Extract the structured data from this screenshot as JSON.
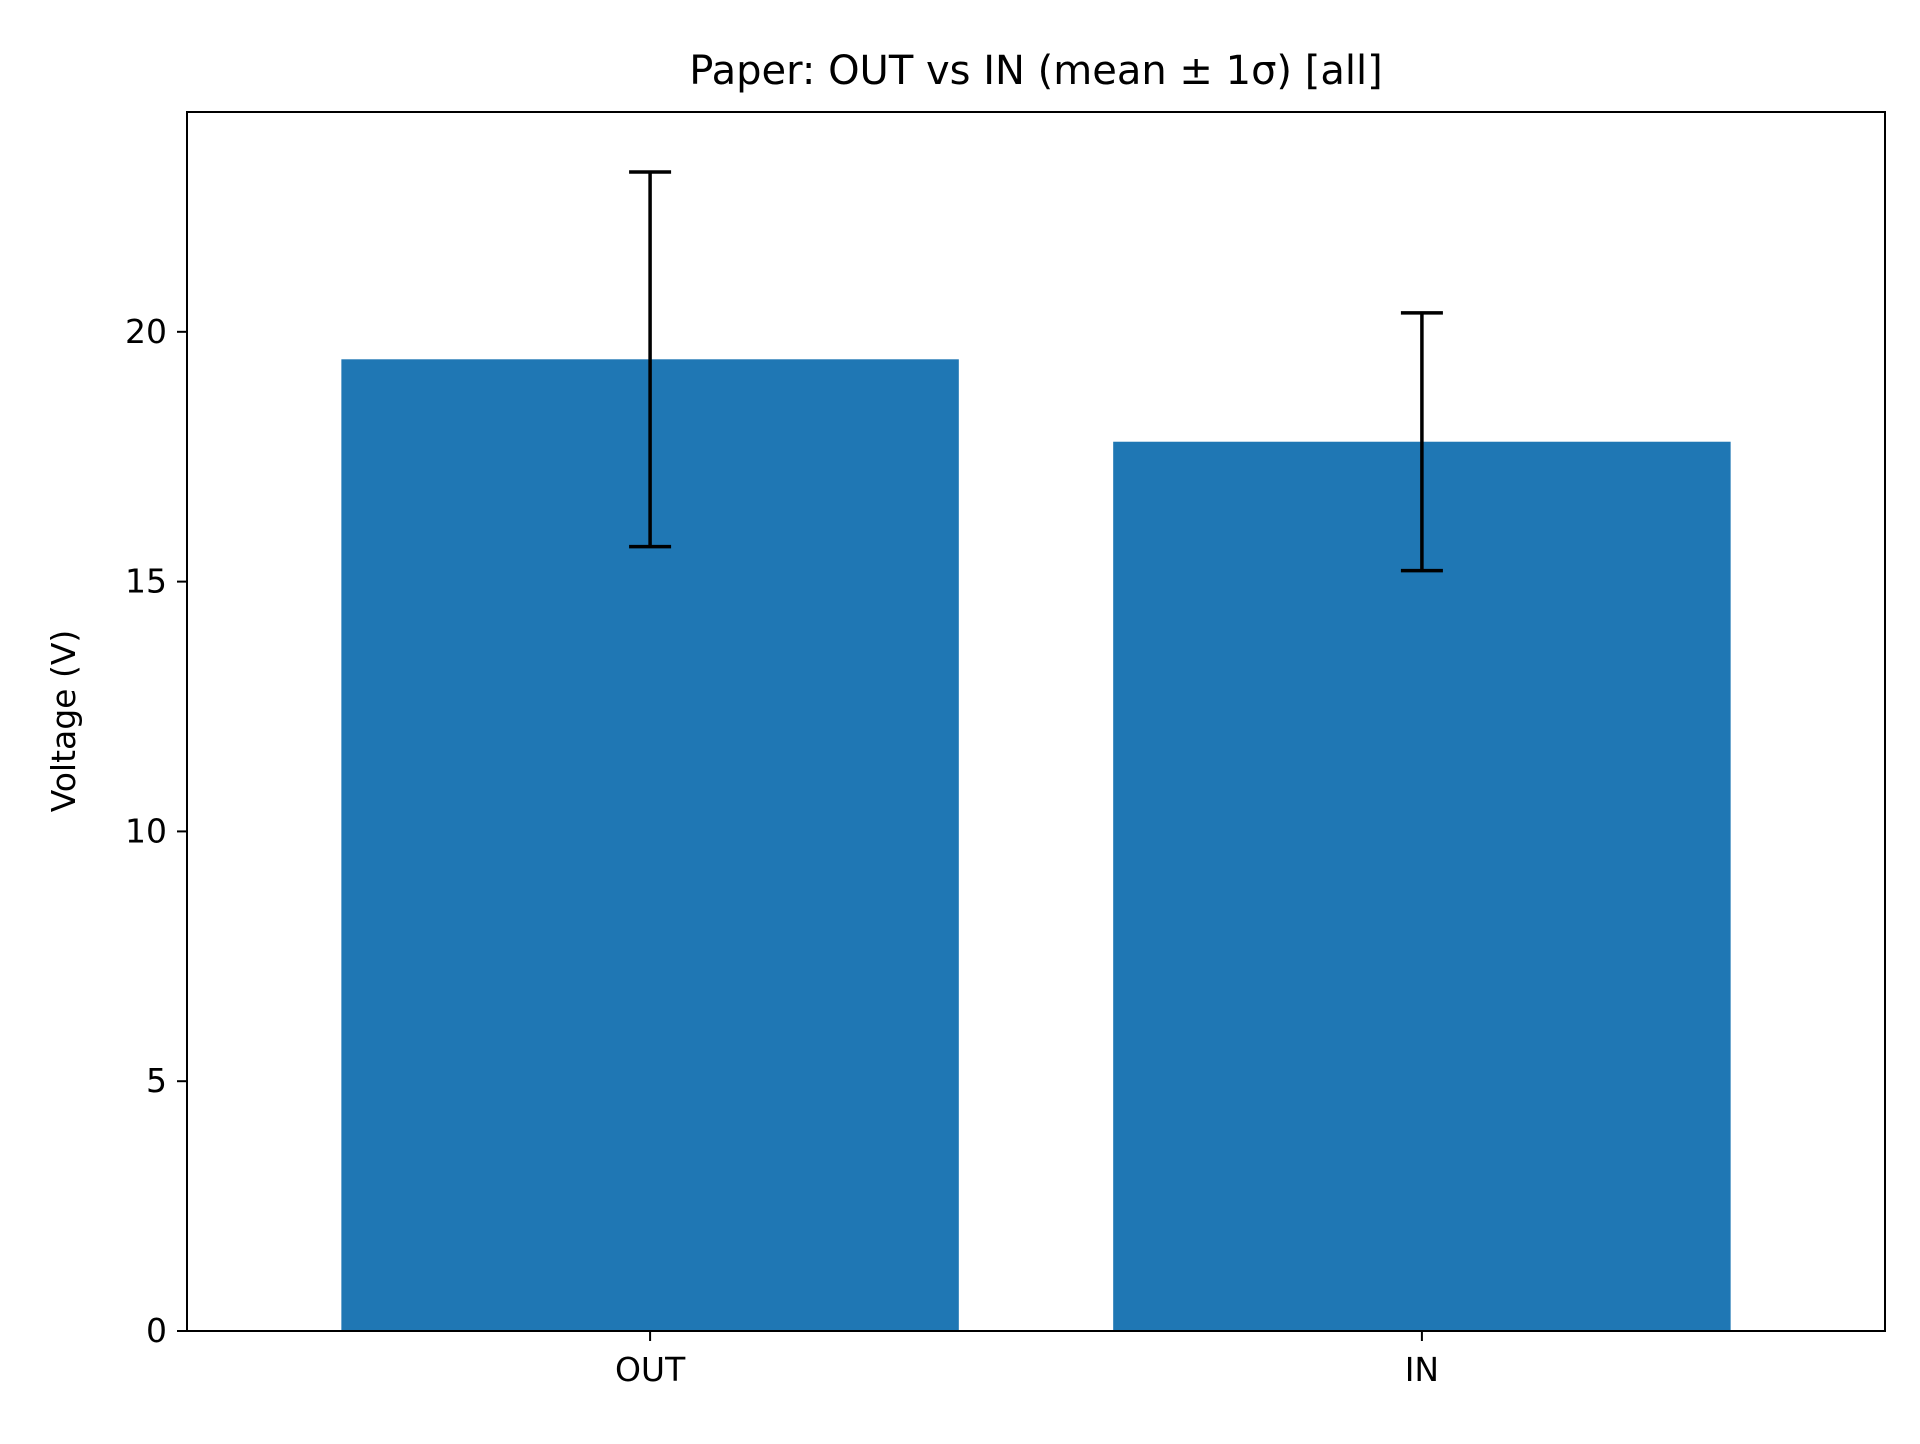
{
  "chart_data": {
    "type": "bar",
    "title": "Paper: OUT vs IN (mean ± 1σ) [all]",
    "xlabel": "",
    "ylabel": "Voltage (V)",
    "categories": [
      "OUT",
      "IN"
    ],
    "values": [
      19.45,
      17.8
    ],
    "error": [
      3.75,
      2.58
    ],
    "ylim": [
      0,
      24.4
    ],
    "yticks": [
      0,
      5,
      10,
      15,
      20
    ],
    "grid": false,
    "legend": "none",
    "colors": {
      "bar": "#1f77b4",
      "errorbar": "#000000",
      "axes": "#000000"
    }
  }
}
